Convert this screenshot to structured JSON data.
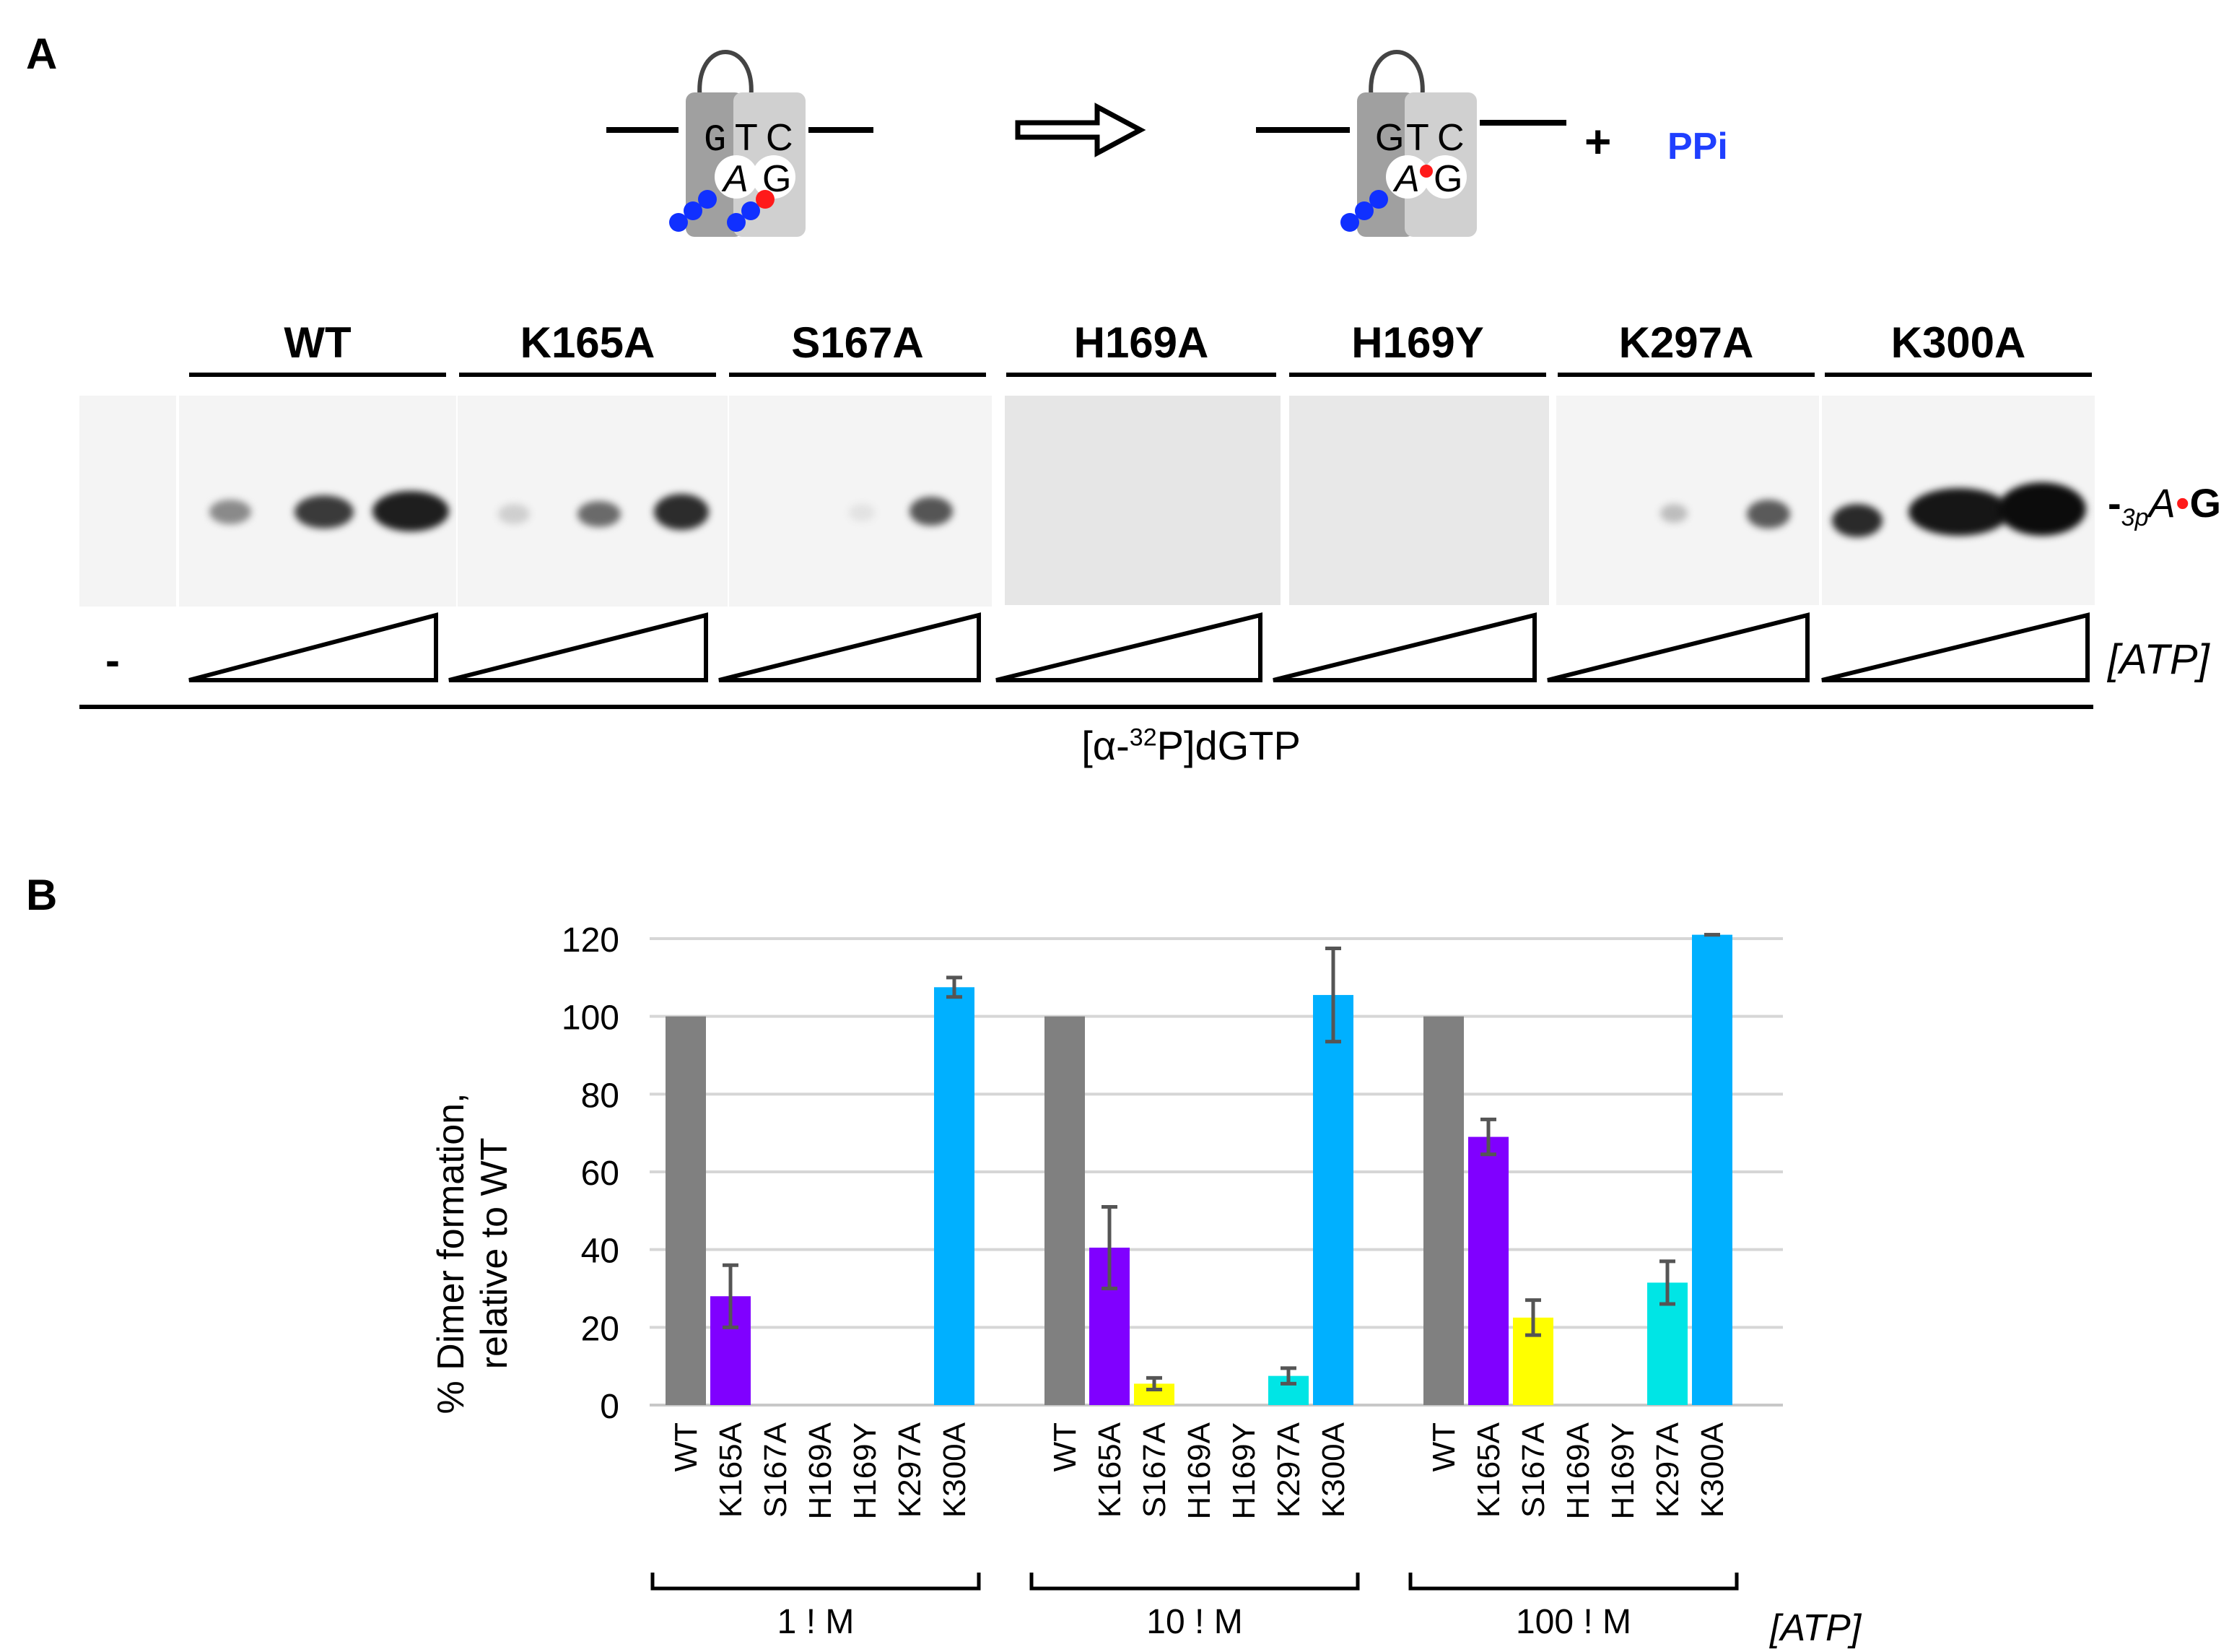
{
  "figure": {
    "panel_a_label": "A",
    "panel_b_label": "B"
  },
  "scheme": {
    "left_top_letters": [
      "G",
      "T",
      "C"
    ],
    "left_bottom_letters": [
      "A",
      "G"
    ],
    "right_top_letters": [
      "G",
      "T",
      "C"
    ],
    "right_bottom_letters": [
      "A",
      "G"
    ],
    "plus": "+",
    "ppi": "PPi",
    "ppi_color": "#1f3fff"
  },
  "gel": {
    "lanes": [
      "WT",
      "K165A",
      "S167A",
      "H169A",
      "H169Y",
      "K297A",
      "K300A"
    ],
    "minus_label": "-",
    "atp_label": "[ATP]",
    "product_label_prefix": "3p",
    "product_label_a": "A",
    "product_label_g": "G",
    "dgtp_prefix": "[α-",
    "dgtp_sup": "32",
    "dgtp_suffix": "P]dGTP"
  },
  "chart_data": {
    "type": "bar",
    "ylabel_line1": "% Dimer formation,",
    "ylabel_line2": "relative to WT",
    "ylim": [
      0,
      120
    ],
    "yticks": [
      0,
      20,
      40,
      60,
      80,
      100,
      120
    ],
    "grid": true,
    "categories": [
      "WT",
      "K165A",
      "S167A",
      "H169A",
      "H169Y",
      "K297A",
      "K300A"
    ],
    "colors": [
      "#808080",
      "#8000ff",
      "#ffff00",
      "#ffff00",
      "#ffff00",
      "#00e5e5",
      "#00b0ff"
    ],
    "groups": [
      {
        "label": "1 ! M",
        "values": [
          100,
          28,
          0,
          0,
          0,
          0,
          107.5
        ],
        "errors": [
          0,
          8,
          0,
          0,
          0,
          0,
          2.5
        ]
      },
      {
        "label": "10 ! M",
        "values": [
          100,
          40.5,
          5.5,
          0,
          0,
          7.5,
          105.5
        ],
        "errors": [
          0,
          10.5,
          1.5,
          0,
          0,
          2,
          12
        ]
      },
      {
        "label": "100 ! M",
        "values": [
          100,
          69,
          22.5,
          0,
          0,
          31.5,
          121
        ],
        "errors": [
          0,
          4.5,
          4.5,
          0,
          0,
          5.5,
          0
        ]
      }
    ],
    "group_axis_label": "[ATP]"
  }
}
